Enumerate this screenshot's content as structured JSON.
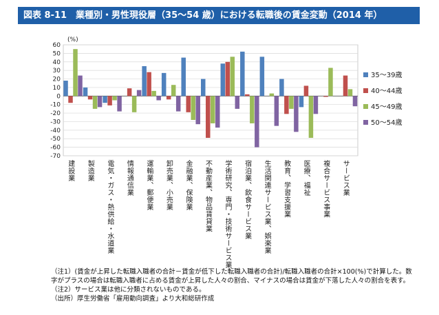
{
  "figure": {
    "title": "図表 8-11　業種別・男性現役層（35〜54 歳）における転職後の賃金変動（2014 年）"
  },
  "chart_data": {
    "type": "bar",
    "ylabel": "(%)",
    "ylim": [
      -70,
      60
    ],
    "yticks": [
      60,
      50,
      40,
      30,
      20,
      10,
      0,
      -10,
      -20,
      -30,
      -40,
      -50,
      -60,
      -70
    ],
    "legend_position": "right",
    "categories": [
      "建設業",
      "製造業",
      "電気・ガス・熱供給・水道業",
      "情報通信業",
      "運輸業、郵便業",
      "卸売業、小売業",
      "金融業、保険業",
      "不動産業、物品賃貸業",
      "学術研究、専門・技術サービス業",
      "宿泊業、飲食サービス業",
      "生活関連サービス業、娯楽業",
      "教育、学習支援業",
      "医療、福祉",
      "複合サービス事業",
      "サービス業"
    ],
    "series": [
      {
        "name": "35～39歳",
        "color": "#4f81bd",
        "values": [
          18,
          10,
          -8,
          0,
          35,
          27,
          45,
          20,
          38,
          52,
          46,
          20,
          -13,
          0,
          0
        ]
      },
      {
        "name": "40～44歳",
        "color": "#c0504d",
        "values": [
          -8,
          -4,
          -11,
          9,
          28,
          -4,
          -19,
          -49,
          40,
          2,
          0,
          -21,
          12,
          -1,
          24
        ]
      },
      {
        "name": "45～49歳",
        "color": "#9bbb59",
        "values": [
          55,
          -15,
          -5,
          -19,
          6,
          13,
          -28,
          -32,
          46,
          -32,
          3,
          -15,
          -49,
          33,
          8
        ]
      },
      {
        "name": "50～54歳",
        "color": "#8064a2",
        "values": [
          24,
          -13,
          -18,
          7,
          -5,
          -18,
          -33,
          -37,
          -15,
          -60,
          -35,
          -42,
          -21,
          0,
          -12
        ]
      }
    ]
  },
  "notes": [
    "（注1）(賃金が上昇した転職入職者の合計－賃金が低下した転職入職者の合計)/転職入職者の合計×100(%)で計算した。数",
    "字がプラスの場合は転職入職者に占める賃金が上昇した人々の割合、マイナスの場合は賃金が下落した人々の割合を表す。",
    "（注2）サービス業は他に分類されないものである。",
    "（出所）厚生労働省「雇用動向調査」より大和総研作成"
  ]
}
